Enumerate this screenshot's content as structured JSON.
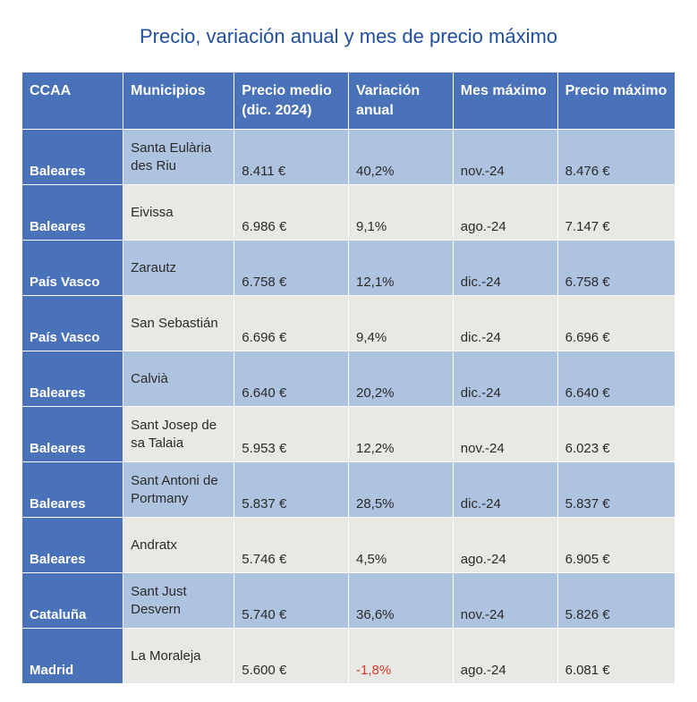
{
  "title": "Precio, variación anual y mes de precio máximo",
  "title_color": "#1f4e9c",
  "table": {
    "header_bg": "#4a72b8",
    "ccaa_col_bg": "#4a72b8",
    "row_stripe_a": "#aec3e0",
    "row_stripe_b": "#e8e8e4",
    "columns": [
      "CCAA",
      "Municipios",
      "Precio medio (dic. 2024)",
      "Variación anual",
      "Mes máximo",
      "Precio máximo"
    ],
    "rows": [
      {
        "ccaa": "Baleares",
        "muni": "Santa Eulària des Riu",
        "precio": "8.411 €",
        "var": "40,2%",
        "var_neg": false,
        "mes": "nov.-24",
        "max": "8.476 €"
      },
      {
        "ccaa": "Baleares",
        "muni": "Eivissa",
        "precio": "6.986 €",
        "var": "9,1%",
        "var_neg": false,
        "mes": "ago.-24",
        "max": "7.147 €"
      },
      {
        "ccaa": "País Vasco",
        "muni": "Zarautz",
        "precio": "6.758 €",
        "var": "12,1%",
        "var_neg": false,
        "mes": "dic.-24",
        "max": "6.758 €"
      },
      {
        "ccaa": "País Vasco",
        "muni": "San Sebastián",
        "precio": "6.696 €",
        "var": "9,4%",
        "var_neg": false,
        "mes": "dic.-24",
        "max": "6.696 €"
      },
      {
        "ccaa": "Baleares",
        "muni": "Calvià",
        "precio": "6.640 €",
        "var": "20,2%",
        "var_neg": false,
        "mes": "dic.-24",
        "max": "6.640 €"
      },
      {
        "ccaa": "Baleares",
        "muni": "Sant Josep de sa Talaia",
        "precio": "5.953 €",
        "var": "12,2%",
        "var_neg": false,
        "mes": "nov.-24",
        "max": "6.023 €"
      },
      {
        "ccaa": "Baleares",
        "muni": "Sant Antoni de Portmany",
        "precio": "5.837 €",
        "var": "28,5%",
        "var_neg": false,
        "mes": "dic.-24",
        "max": "5.837 €"
      },
      {
        "ccaa": "Baleares",
        "muni": "Andratx",
        "precio": "5.746 €",
        "var": "4,5%",
        "var_neg": false,
        "mes": "ago.-24",
        "max": "6.905 €"
      },
      {
        "ccaa": "Cataluña",
        "muni": "Sant Just Desvern",
        "precio": "5.740 €",
        "var": "36,6%",
        "var_neg": false,
        "mes": "nov.-24",
        "max": "5.826 €"
      },
      {
        "ccaa": "Madrid",
        "muni": "La Moraleja",
        "precio": "5.600 €",
        "var": "-1,8%",
        "var_neg": true,
        "mes": "ago.-24",
        "max": "6.081 €"
      }
    ],
    "negative_color": "#d83a2a"
  }
}
